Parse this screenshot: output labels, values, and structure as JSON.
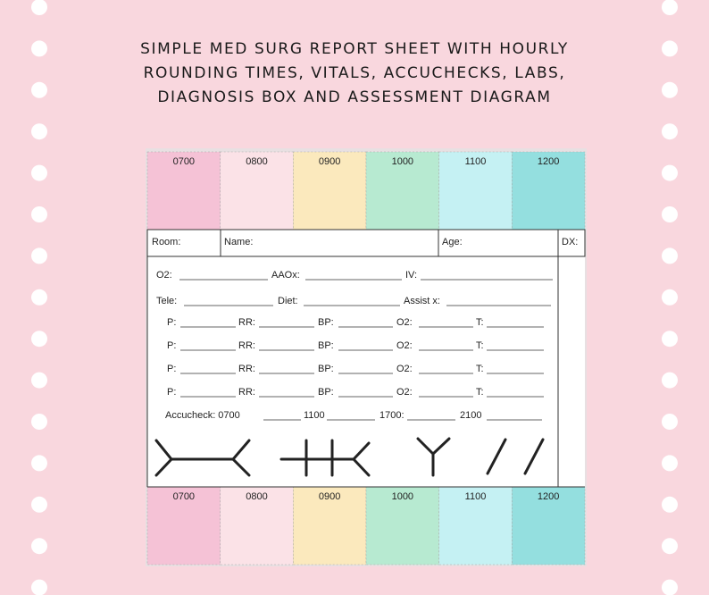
{
  "title": [
    "SIMPLE MED SURG REPORT SHEET WITH HOURLY",
    "ROUNDING TIMES, VITALS, ACCUCHECKS, LABS,",
    "DIAGNOSIS BOX AND ASSESSMENT DIAGRAM"
  ],
  "top_times": [
    "0700",
    "0800",
    "0900",
    "1000",
    "1100",
    "1200"
  ],
  "info_labels": [
    "Room:",
    "Name:",
    "Age:",
    "DX:"
  ],
  "form": {
    "line1": [
      "O2:",
      "AAOx:",
      "IV:"
    ],
    "line2": [
      "Tele:",
      "Diet:",
      "Assist x:"
    ],
    "vitals": [
      [
        "P:",
        "RR:",
        "BP:",
        "O2:",
        "T:"
      ],
      [
        "P:",
        "RR:",
        "BP:",
        "O2:",
        "T:"
      ],
      [
        "P:",
        "RR:",
        "BP:",
        "O2:",
        "T:"
      ],
      [
        "P:",
        "RR:",
        "BP:",
        "O2:",
        "T:"
      ]
    ],
    "accucheck": [
      "Accucheck: 0700",
      "1100",
      "1700:",
      "2100"
    ]
  },
  "bottom_times": [
    "0700",
    "0800",
    "0900",
    "1000",
    "1100",
    "1200"
  ]
}
